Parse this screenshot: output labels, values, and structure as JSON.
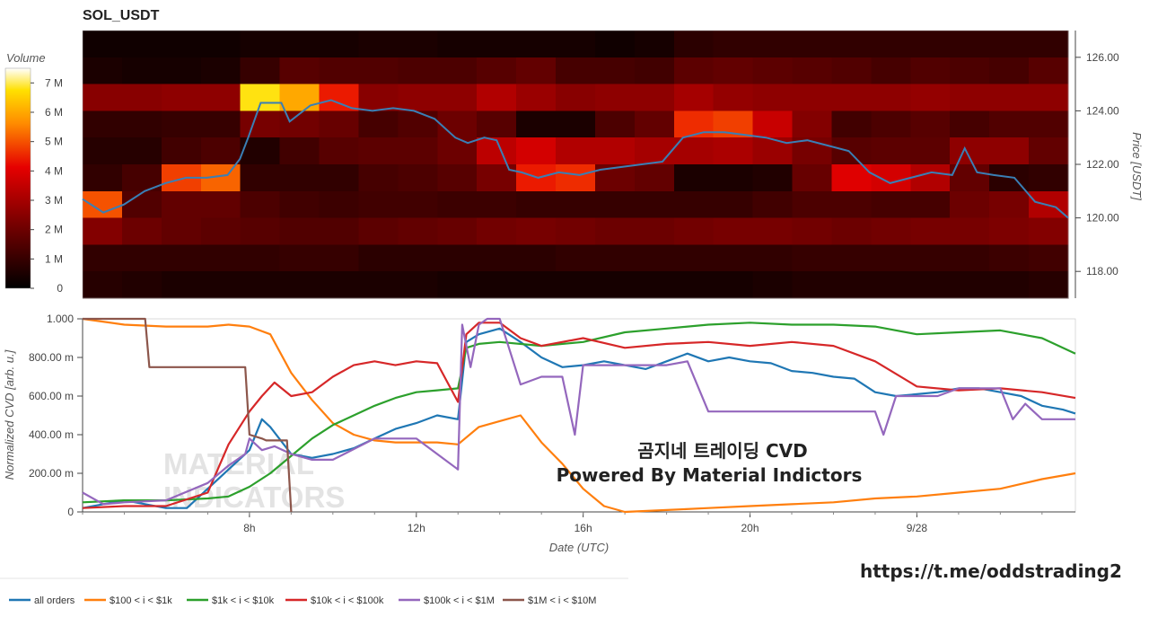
{
  "title": "SOL_USDT",
  "watermark": {
    "line1": "MATERIAL",
    "line2": "INDICATORS"
  },
  "overlay": {
    "line1": "곰지네 트레이딩 CVD",
    "line2": "Powered By Material Indictors",
    "link": "https://t.me/oddstrading2"
  },
  "colors": {
    "all_orders": "#1f77b4",
    "range_100_1k": "#ff7f0e",
    "range_1k_10k": "#2ca02c",
    "range_10k_100k": "#d62728",
    "range_100k_1m": "#9467bd",
    "range_1m_10m": "#8c564b",
    "price_line": "#3a7fb5"
  },
  "chart_data": [
    {
      "type": "heatmap",
      "title": "SOL_USDT",
      "colorbar": {
        "title": "Volume",
        "ticks": [
          "0",
          "1 M",
          "2 M",
          "3 M",
          "4 M",
          "5 M",
          "6 M",
          "7 M"
        ],
        "range": [
          0,
          7500000
        ]
      },
      "ylabel": "Price [USDT]",
      "ylim": [
        117.0,
        127.0
      ],
      "yticks": [
        "118.00",
        "120.00",
        "122.00",
        "124.00",
        "126.00"
      ],
      "price_levels": [
        126.5,
        125.5,
        124.5,
        123.5,
        122.5,
        121.5,
        120.5,
        119.5,
        118.5,
        117.5
      ],
      "time_hours": [
        4.0,
        5.0,
        6.0,
        7.0,
        8.0,
        9.0,
        10.0,
        11.0,
        12.0,
        13.0,
        14.0,
        15.0,
        16.0,
        17.0,
        18.0,
        19.0,
        20.0,
        21.0,
        22.0,
        23.0,
        24.0,
        25.0,
        26.0,
        27.0,
        27.8
      ],
      "volume_rows_millions": [
        [
          0.3,
          0.3,
          0.3,
          0.3,
          0.4,
          0.4,
          0.4,
          0.5,
          0.5,
          0.4,
          0.4,
          0.4,
          0.4,
          0.3,
          0.4,
          0.8,
          0.9,
          0.9,
          0.9,
          0.9,
          0.9,
          0.9,
          0.9,
          0.9,
          0.9
        ],
        [
          0.5,
          0.4,
          0.4,
          0.5,
          1.0,
          1.6,
          1.5,
          1.5,
          1.4,
          1.4,
          1.6,
          1.8,
          1.3,
          1.3,
          1.2,
          1.7,
          1.8,
          1.7,
          1.6,
          1.5,
          1.3,
          1.5,
          1.4,
          1.3,
          1.6
        ],
        [
          2.5,
          2.5,
          2.6,
          2.6,
          6.8,
          6.0,
          4.4,
          2.5,
          2.6,
          2.6,
          3.2,
          2.8,
          2.5,
          2.6,
          2.6,
          3.0,
          2.7,
          2.6,
          2.6,
          2.6,
          2.6,
          2.7,
          2.6,
          2.6,
          2.6
        ],
        [
          0.9,
          0.9,
          1.0,
          1.0,
          2.2,
          2.1,
          1.9,
          1.3,
          1.5,
          2.0,
          1.6,
          0.5,
          0.5,
          1.4,
          1.8,
          4.6,
          4.8,
          3.6,
          2.4,
          1.2,
          1.4,
          1.6,
          1.3,
          1.5,
          1.5
        ],
        [
          0.7,
          0.7,
          1.2,
          1.4,
          0.6,
          1.2,
          1.6,
          1.7,
          1.7,
          2.0,
          3.4,
          3.8,
          3.2,
          3.2,
          3.0,
          3.0,
          3.1,
          2.8,
          2.2,
          1.6,
          1.7,
          1.7,
          2.6,
          2.6,
          1.8
        ],
        [
          0.9,
          1.3,
          4.8,
          5.2,
          0.9,
          0.9,
          0.9,
          1.3,
          1.4,
          1.6,
          2.2,
          4.4,
          4.6,
          2.0,
          1.8,
          0.5,
          0.5,
          0.6,
          1.9,
          4.0,
          3.8,
          3.2,
          1.8,
          0.8,
          0.9
        ],
        [
          5.0,
          1.5,
          1.8,
          1.8,
          1.4,
          1.2,
          1.1,
          1.2,
          1.2,
          1.1,
          1.1,
          1.0,
          1.0,
          1.0,
          1.0,
          1.0,
          1.0,
          1.2,
          1.4,
          1.4,
          1.3,
          1.3,
          2.0,
          2.2,
          3.2
        ],
        [
          2.4,
          2.0,
          1.8,
          1.7,
          1.6,
          1.5,
          1.5,
          1.7,
          1.8,
          1.9,
          2.1,
          2.2,
          2.1,
          2.0,
          2.0,
          2.1,
          2.2,
          2.2,
          2.1,
          2.0,
          2.1,
          2.2,
          2.2,
          2.3,
          2.4
        ],
        [
          0.9,
          0.9,
          0.9,
          0.9,
          0.9,
          1.0,
          1.0,
          0.8,
          0.8,
          0.8,
          0.8,
          0.8,
          0.9,
          0.9,
          0.9,
          0.9,
          0.9,
          0.9,
          1.0,
          1.0,
          1.0,
          1.0,
          1.0,
          1.1,
          1.2
        ],
        [
          0.7,
          0.6,
          0.5,
          0.5,
          0.5,
          0.5,
          0.5,
          0.5,
          0.5,
          0.4,
          0.4,
          0.4,
          0.4,
          0.4,
          0.4,
          0.4,
          0.4,
          0.5,
          0.6,
          0.6,
          0.6,
          0.6,
          0.6,
          0.6,
          0.7
        ]
      ],
      "price_series": {
        "name": "Price",
        "x": [
          4.0,
          4.5,
          5.0,
          5.5,
          6.0,
          6.5,
          7.0,
          7.5,
          7.8,
          8.0,
          8.3,
          8.8,
          9.0,
          9.5,
          10.0,
          10.5,
          11.0,
          11.5,
          12.0,
          12.5,
          13.0,
          13.3,
          13.7,
          14.0,
          14.3,
          14.6,
          15.0,
          15.5,
          16.0,
          16.5,
          17.0,
          17.5,
          18.0,
          18.5,
          19.0,
          19.5,
          20.0,
          20.5,
          21.0,
          21.5,
          22.0,
          22.5,
          23.0,
          23.5,
          24.0,
          24.5,
          25.0,
          25.3,
          25.6,
          26.0,
          26.5,
          27.0,
          27.5,
          27.8
        ],
        "y": [
          120.7,
          120.2,
          120.5,
          121.0,
          121.3,
          121.5,
          121.5,
          121.6,
          122.2,
          123.0,
          124.3,
          124.3,
          123.6,
          124.2,
          124.4,
          124.1,
          124.0,
          124.1,
          124.0,
          123.7,
          123.0,
          122.8,
          123.0,
          122.9,
          121.8,
          121.7,
          121.5,
          121.7,
          121.6,
          121.8,
          121.9,
          122.0,
          122.1,
          123.0,
          123.2,
          123.2,
          123.1,
          123.0,
          122.8,
          122.9,
          122.7,
          122.5,
          121.7,
          121.3,
          121.5,
          121.7,
          121.6,
          122.6,
          121.7,
          121.6,
          121.5,
          120.6,
          120.4,
          120.0
        ]
      }
    },
    {
      "type": "line",
      "xlabel": "Date (UTC)",
      "ylabel": "Normalized CVD [arb. u.]",
      "xlim": [
        4.0,
        27.8
      ],
      "xticks": [
        {
          "value": 8,
          "label": "8h"
        },
        {
          "value": 12,
          "label": "12h"
        },
        {
          "value": 16,
          "label": "16h"
        },
        {
          "value": 20,
          "label": "20h"
        },
        {
          "value": 24,
          "label": "9/28"
        }
      ],
      "ylim": [
        0,
        1.0
      ],
      "yticks": [
        {
          "value": 0,
          "label": "0"
        },
        {
          "value": 0.2,
          "label": "200.00 m"
        },
        {
          "value": 0.4,
          "label": "400.00 m"
        },
        {
          "value": 0.6,
          "label": "600.00 m"
        },
        {
          "value": 0.8,
          "label": "800.00 m"
        },
        {
          "value": 1.0,
          "label": "1.000"
        }
      ],
      "legend_position": "bottom",
      "series": [
        {
          "name": "all orders",
          "color": "#1f77b4",
          "x": [
            4.0,
            5.0,
            6.0,
            6.5,
            7.0,
            7.5,
            8.0,
            8.3,
            8.5,
            9.0,
            9.5,
            10.0,
            10.5,
            11.0,
            11.5,
            12.0,
            12.5,
            13.0,
            13.2,
            13.5,
            14.0,
            14.5,
            15.0,
            15.5,
            16.0,
            16.5,
            17.0,
            17.5,
            18.0,
            18.5,
            19.0,
            19.5,
            20.0,
            20.5,
            21.0,
            21.5,
            22.0,
            22.5,
            23.0,
            23.5,
            24.0,
            24.5,
            25.0,
            25.5,
            26.0,
            26.5,
            27.0,
            27.5,
            27.8
          ],
          "y": [
            0.02,
            0.06,
            0.02,
            0.02,
            0.12,
            0.22,
            0.32,
            0.48,
            0.44,
            0.3,
            0.28,
            0.3,
            0.33,
            0.38,
            0.43,
            0.46,
            0.5,
            0.48,
            0.88,
            0.92,
            0.95,
            0.88,
            0.8,
            0.75,
            0.76,
            0.78,
            0.76,
            0.74,
            0.78,
            0.82,
            0.78,
            0.8,
            0.78,
            0.77,
            0.73,
            0.72,
            0.7,
            0.69,
            0.62,
            0.6,
            0.61,
            0.62,
            0.64,
            0.64,
            0.62,
            0.6,
            0.55,
            0.53,
            0.51
          ]
        },
        {
          "name": "$100 < i < $1k",
          "color": "#ff7f0e",
          "x": [
            4.0,
            5.0,
            6.0,
            7.0,
            7.5,
            8.0,
            8.5,
            9.0,
            9.5,
            10.0,
            10.5,
            11.0,
            11.5,
            12.0,
            12.5,
            13.0,
            13.5,
            14.0,
            14.5,
            15.0,
            15.5,
            16.0,
            16.5,
            17.0,
            18.0,
            19.0,
            20.0,
            21.0,
            22.0,
            23.0,
            24.0,
            25.0,
            26.0,
            27.0,
            27.8
          ],
          "y": [
            1.0,
            0.97,
            0.96,
            0.96,
            0.97,
            0.96,
            0.92,
            0.72,
            0.58,
            0.46,
            0.4,
            0.37,
            0.36,
            0.36,
            0.36,
            0.35,
            0.44,
            0.47,
            0.5,
            0.36,
            0.25,
            0.12,
            0.03,
            0.0,
            0.01,
            0.02,
            0.03,
            0.04,
            0.05,
            0.07,
            0.08,
            0.1,
            0.12,
            0.17,
            0.2
          ]
        },
        {
          "name": "$1k < i < $10k",
          "color": "#2ca02c",
          "x": [
            4.0,
            5.0,
            6.0,
            7.0,
            7.5,
            8.0,
            8.5,
            9.0,
            9.5,
            10.0,
            10.5,
            11.0,
            11.5,
            12.0,
            12.5,
            13.0,
            13.2,
            13.5,
            14.0,
            15.0,
            16.0,
            17.0,
            18.0,
            19.0,
            20.0,
            21.0,
            22.0,
            23.0,
            24.0,
            25.0,
            26.0,
            27.0,
            27.8
          ],
          "y": [
            0.05,
            0.06,
            0.06,
            0.07,
            0.08,
            0.13,
            0.2,
            0.29,
            0.38,
            0.45,
            0.5,
            0.55,
            0.59,
            0.62,
            0.63,
            0.64,
            0.85,
            0.87,
            0.88,
            0.86,
            0.88,
            0.93,
            0.95,
            0.97,
            0.98,
            0.97,
            0.97,
            0.96,
            0.92,
            0.93,
            0.94,
            0.9,
            0.82
          ]
        },
        {
          "name": "$10k < i < $100k",
          "color": "#d62728",
          "x": [
            4.0,
            5.0,
            6.0,
            7.0,
            7.5,
            8.0,
            8.3,
            8.6,
            9.0,
            9.5,
            10.0,
            10.5,
            11.0,
            11.5,
            12.0,
            12.5,
            13.0,
            13.2,
            13.5,
            14.0,
            14.5,
            15.0,
            16.0,
            17.0,
            18.0,
            19.0,
            20.0,
            21.0,
            22.0,
            23.0,
            24.0,
            25.0,
            26.0,
            27.0,
            27.8
          ],
          "y": [
            0.02,
            0.03,
            0.03,
            0.1,
            0.35,
            0.52,
            0.6,
            0.67,
            0.6,
            0.62,
            0.7,
            0.76,
            0.78,
            0.76,
            0.78,
            0.77,
            0.57,
            0.92,
            0.98,
            0.98,
            0.9,
            0.86,
            0.9,
            0.85,
            0.87,
            0.88,
            0.86,
            0.88,
            0.86,
            0.78,
            0.65,
            0.63,
            0.64,
            0.62,
            0.59
          ]
        },
        {
          "name": "$100k < i < $1M",
          "color": "#9467bd",
          "x": [
            4.0,
            4.5,
            5.0,
            6.0,
            7.0,
            7.5,
            7.9,
            8.0,
            8.3,
            8.6,
            9.0,
            9.5,
            10.0,
            11.0,
            12.0,
            13.0,
            13.1,
            13.3,
            13.5,
            13.7,
            14.0,
            14.5,
            15.0,
            15.5,
            15.8,
            16.0,
            17.0,
            18.0,
            18.5,
            19.0,
            20.0,
            21.0,
            22.0,
            23.0,
            23.2,
            23.5,
            24.0,
            24.5,
            25.0,
            25.5,
            26.0,
            26.3,
            26.6,
            27.0,
            27.8
          ],
          "y": [
            0.1,
            0.04,
            0.05,
            0.06,
            0.15,
            0.24,
            0.3,
            0.38,
            0.32,
            0.34,
            0.3,
            0.27,
            0.27,
            0.38,
            0.38,
            0.22,
            0.97,
            0.75,
            0.97,
            1.0,
            1.0,
            0.66,
            0.7,
            0.7,
            0.4,
            0.76,
            0.76,
            0.76,
            0.78,
            0.52,
            0.52,
            0.52,
            0.52,
            0.52,
            0.4,
            0.6,
            0.6,
            0.6,
            0.64,
            0.64,
            0.64,
            0.48,
            0.56,
            0.48,
            0.48
          ]
        },
        {
          "name": "$1M < i < $10M",
          "color": "#8c564b",
          "x": [
            4.0,
            5.5,
            5.6,
            7.9,
            8.0,
            8.3,
            8.4,
            8.9,
            9.0
          ],
          "y": [
            1.0,
            1.0,
            0.75,
            0.75,
            0.4,
            0.38,
            0.37,
            0.37,
            0.0
          ]
        }
      ]
    }
  ]
}
